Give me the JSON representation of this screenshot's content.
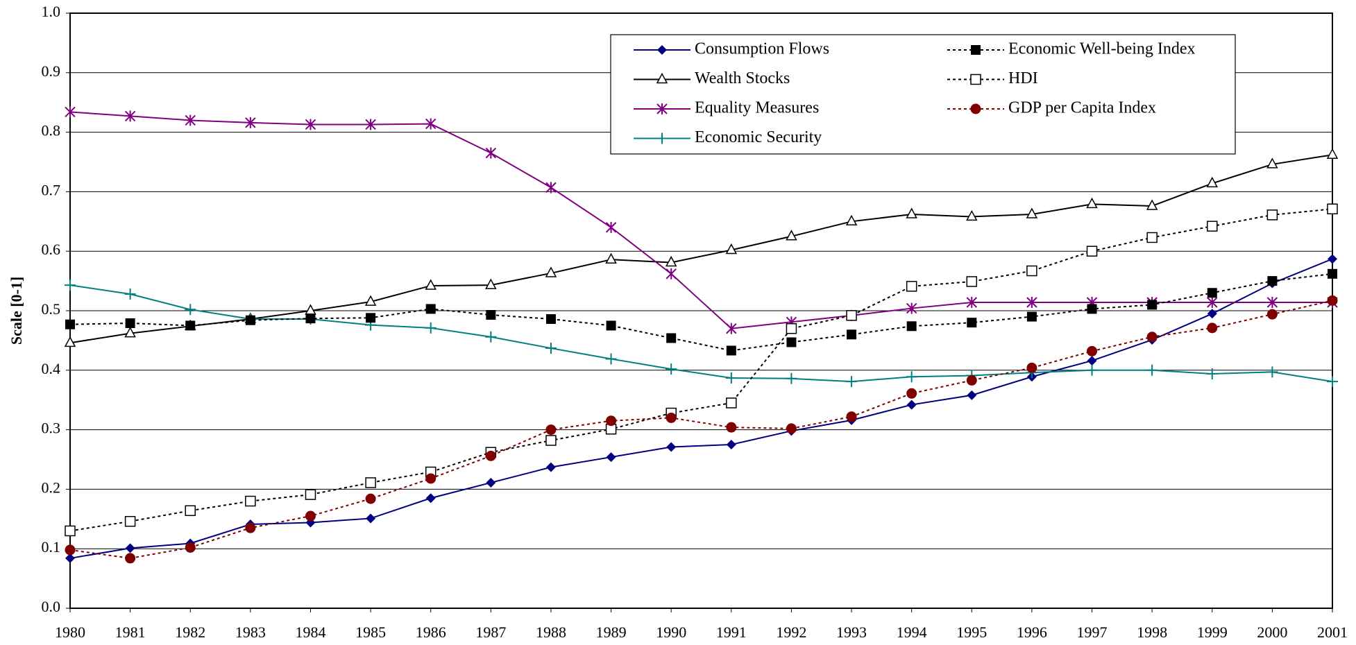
{
  "chart_data": {
    "type": "line",
    "y_label": "Scale [0-1]",
    "x": [
      1980,
      1981,
      1982,
      1983,
      1984,
      1985,
      1986,
      1987,
      1988,
      1989,
      1990,
      1991,
      1992,
      1993,
      1994,
      1995,
      1996,
      1997,
      1998,
      1999,
      2000,
      2001
    ],
    "xlim": [
      1980,
      2001
    ],
    "xticks": [
      1980,
      1981,
      1982,
      1983,
      1984,
      1985,
      1986,
      1987,
      1988,
      1989,
      1990,
      1991,
      1992,
      1993,
      1994,
      1995,
      1996,
      1997,
      1998,
      1999,
      2000,
      2001
    ],
    "ylim": [
      0,
      1
    ],
    "yticks": [
      {
        "value": 0,
        "label": "0.0"
      },
      0.1,
      0.2,
      0.3,
      0.4,
      0.5,
      0.6,
      0.7,
      0.8,
      0.9,
      {
        "value": 1,
        "label": "1.0"
      }
    ],
    "grid": true,
    "legend": "top-right",
    "series": [
      {
        "name": "Consumption Flows",
        "color": "#000080",
        "marker": "diamond",
        "dash": "solid",
        "values": [
          0.084,
          0.101,
          0.109,
          0.141,
          0.144,
          0.151,
          0.185,
          0.211,
          0.237,
          0.254,
          0.271,
          0.275,
          0.298,
          0.316,
          0.342,
          0.358,
          0.389,
          0.416,
          0.451,
          0.495,
          0.546,
          0.587
        ]
      },
      {
        "name": "Wealth Stocks",
        "color": "#000000",
        "marker": "triangle",
        "dash": "solid",
        "values": [
          0.446,
          0.462,
          0.474,
          0.486,
          0.5,
          0.515,
          0.542,
          0.543,
          0.563,
          0.586,
          0.581,
          0.602,
          0.625,
          0.65,
          0.662,
          0.658,
          0.662,
          0.679,
          0.676,
          0.714,
          0.746,
          0.762
        ]
      },
      {
        "name": "Equality Measures",
        "color": "#800080",
        "marker": "asterisk",
        "dash": "solid",
        "values": [
          0.834,
          0.827,
          0.82,
          0.816,
          0.813,
          0.813,
          0.814,
          0.765,
          0.707,
          0.64,
          0.562,
          0.47,
          0.481,
          0.492,
          0.504,
          0.514,
          0.514,
          0.514,
          0.514,
          0.514,
          0.514,
          0.514
        ]
      },
      {
        "name": "Economic Security",
        "color": "#008080",
        "marker": "plus",
        "dash": "solid",
        "values": [
          0.543,
          0.528,
          0.502,
          0.486,
          0.486,
          0.476,
          0.471,
          0.456,
          0.437,
          0.419,
          0.402,
          0.387,
          0.386,
          0.381,
          0.389,
          0.391,
          0.396,
          0.4,
          0.4,
          0.394,
          0.397,
          0.381
        ]
      },
      {
        "name": "Economic Well-being Index",
        "color": "#000000",
        "marker": "square",
        "dash": "dotted",
        "values": [
          0.477,
          0.479,
          0.475,
          0.484,
          0.487,
          0.488,
          0.503,
          0.493,
          0.486,
          0.475,
          0.454,
          0.433,
          0.447,
          0.46,
          0.474,
          0.48,
          0.49,
          0.503,
          0.51,
          0.53,
          0.55,
          0.562
        ]
      },
      {
        "name": "HDI",
        "color": "#000000",
        "marker": "open-square",
        "dash": "dotted",
        "values": [
          0.13,
          0.146,
          0.164,
          0.18,
          0.191,
          0.211,
          0.229,
          0.262,
          0.282,
          0.301,
          0.328,
          0.345,
          0.47,
          0.492,
          0.541,
          0.549,
          0.567,
          0.6,
          0.623,
          0.642,
          0.661,
          0.671
        ]
      },
      {
        "name": "GDP per Capita Index",
        "color": "#800000",
        "marker": "circle",
        "dash": "dotted",
        "values": [
          0.098,
          0.084,
          0.102,
          0.135,
          0.155,
          0.184,
          0.218,
          0.256,
          0.3,
          0.315,
          0.32,
          0.304,
          0.302,
          0.322,
          0.361,
          0.383,
          0.404,
          0.432,
          0.456,
          0.471,
          0.494,
          0.517
        ]
      }
    ]
  }
}
